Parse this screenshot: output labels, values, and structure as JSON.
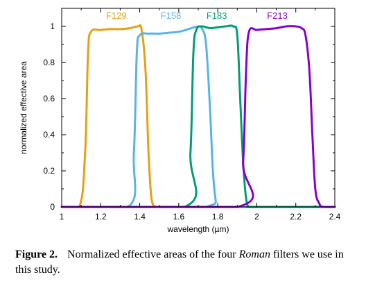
{
  "chart_data": {
    "type": "line",
    "xlabel": "wavelength (µm)",
    "ylabel": "normalized effective area",
    "xlim": [
      1,
      2.4
    ],
    "ylim": [
      0,
      1.1
    ],
    "xticks": [
      "1",
      "1.2",
      "1.4",
      "1.6",
      "1.8",
      "2",
      "2.2",
      "2.4"
    ],
    "yticks": [
      "0",
      "0.2",
      "0.4",
      "0.6",
      "0.8",
      "1"
    ],
    "grid": false,
    "series": [
      {
        "name": "F129",
        "color": "#e6a014",
        "x": [
          1.0,
          1.09,
          1.12,
          1.135,
          1.15,
          1.2,
          1.25,
          1.3,
          1.35,
          1.39,
          1.41,
          1.43,
          1.445,
          1.46,
          1.48,
          1.5,
          2.4
        ],
        "y": [
          0,
          0,
          0.3,
          0.85,
          0.97,
          0.98,
          0.985,
          0.985,
          0.99,
          1.0,
          0.98,
          0.75,
          0.3,
          0.05,
          0,
          0,
          0
        ]
      },
      {
        "name": "F158",
        "color": "#56b4e9",
        "x": [
          1.0,
          1.34,
          1.37,
          1.385,
          1.4,
          1.45,
          1.5,
          1.55,
          1.6,
          1.65,
          1.7,
          1.72,
          1.74,
          1.76,
          1.775,
          1.79,
          1.8,
          2.4
        ],
        "y": [
          0,
          0,
          0.3,
          0.85,
          0.95,
          0.96,
          0.96,
          0.965,
          0.97,
          0.985,
          1.0,
          0.985,
          0.9,
          0.55,
          0.2,
          0.03,
          0,
          0
        ]
      },
      {
        "name": "F183",
        "color": "#009e73",
        "x": [
          1.0,
          1.63,
          1.66,
          1.675,
          1.69,
          1.72,
          1.76,
          1.8,
          1.84,
          1.88,
          1.9,
          1.915,
          1.93,
          1.945,
          1.96,
          1.99,
          2.4
        ],
        "y": [
          0,
          0,
          0.3,
          0.85,
          0.98,
          1.0,
          0.99,
          0.995,
          1.0,
          1.0,
          0.95,
          0.6,
          0.25,
          0.05,
          0,
          0,
          0
        ]
      },
      {
        "name": "F213",
        "color": "#8b00c8",
        "x": [
          1.0,
          1.9,
          1.93,
          1.945,
          1.96,
          2.0,
          2.05,
          2.1,
          2.15,
          2.2,
          2.23,
          2.25,
          2.27,
          2.285,
          2.3,
          2.32,
          2.34,
          2.4
        ],
        "y": [
          0,
          0,
          0.25,
          0.75,
          0.97,
          0.98,
          0.985,
          0.99,
          1.0,
          1.0,
          0.99,
          0.95,
          0.75,
          0.4,
          0.1,
          0.02,
          0,
          0
        ]
      }
    ]
  },
  "caption": {
    "label": "Figure 2.",
    "text_before": "Normalized effective areas of the four ",
    "italic": "Roman",
    "text_after": " filters we use in this study."
  }
}
